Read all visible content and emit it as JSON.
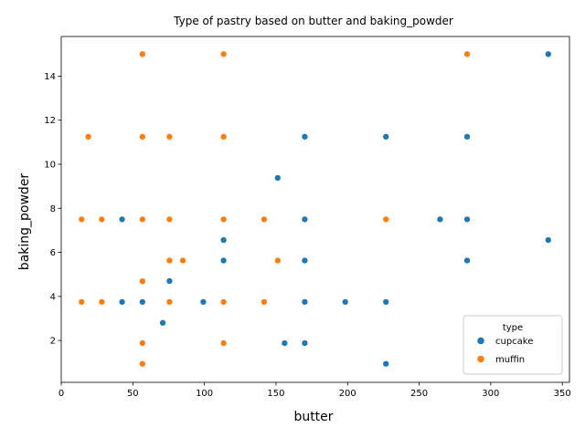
{
  "chart_data": {
    "type": "scatter",
    "title": "Type of pastry based on butter and baking_powder",
    "xlabel": "butter",
    "ylabel": "baking_powder",
    "xlim": [
      0,
      355
    ],
    "ylim": [
      0.1,
      15.8
    ],
    "xticks": [
      0,
      50,
      100,
      150,
      200,
      250,
      300,
      350
    ],
    "yticks": [
      2,
      4,
      6,
      8,
      10,
      12,
      14
    ],
    "grid": false,
    "legend": {
      "title": "type",
      "placement": "bottom-right"
    },
    "series": [
      {
        "name": "cupcake",
        "color": "#1f77b4",
        "points": [
          [
            42.5,
            7.5
          ],
          [
            42.5,
            3.75
          ],
          [
            56.7,
            3.75
          ],
          [
            70.9,
            2.8
          ],
          [
            75.6,
            4.7
          ],
          [
            99.2,
            3.75
          ],
          [
            113.4,
            6.56
          ],
          [
            113.4,
            5.63
          ],
          [
            151.2,
            9.38
          ],
          [
            156,
            1.88
          ],
          [
            170.1,
            11.25
          ],
          [
            170.1,
            7.5
          ],
          [
            170.1,
            5.63
          ],
          [
            170.1,
            3.75
          ],
          [
            170.1,
            1.88
          ],
          [
            198.4,
            3.75
          ],
          [
            226.8,
            11.25
          ],
          [
            226.8,
            3.75
          ],
          [
            226.8,
            0.94
          ],
          [
            264.6,
            7.5
          ],
          [
            283.5,
            11.25
          ],
          [
            283.5,
            7.5
          ],
          [
            283.5,
            5.63
          ],
          [
            340.2,
            15
          ],
          [
            340.2,
            6.56
          ]
        ]
      },
      {
        "name": "muffin",
        "color": "#ff7f0e",
        "points": [
          [
            14.2,
            7.5
          ],
          [
            14.2,
            3.75
          ],
          [
            18.9,
            11.25
          ],
          [
            28.3,
            7.5
          ],
          [
            28.3,
            3.75
          ],
          [
            56.7,
            15
          ],
          [
            56.7,
            11.25
          ],
          [
            56.7,
            7.5
          ],
          [
            56.7,
            4.69
          ],
          [
            56.7,
            1.88
          ],
          [
            56.7,
            0.94
          ],
          [
            75.6,
            11.25
          ],
          [
            75.6,
            7.5
          ],
          [
            75.6,
            5.63
          ],
          [
            75.6,
            3.75
          ],
          [
            85,
            5.63
          ],
          [
            113.4,
            15
          ],
          [
            113.4,
            11.25
          ],
          [
            113.4,
            7.5
          ],
          [
            113.4,
            3.75
          ],
          [
            113.4,
            1.88
          ],
          [
            141.7,
            7.5
          ],
          [
            141.7,
            3.75
          ],
          [
            151.2,
            5.63
          ],
          [
            226.8,
            7.5
          ],
          [
            283.5,
            15
          ]
        ]
      }
    ]
  }
}
